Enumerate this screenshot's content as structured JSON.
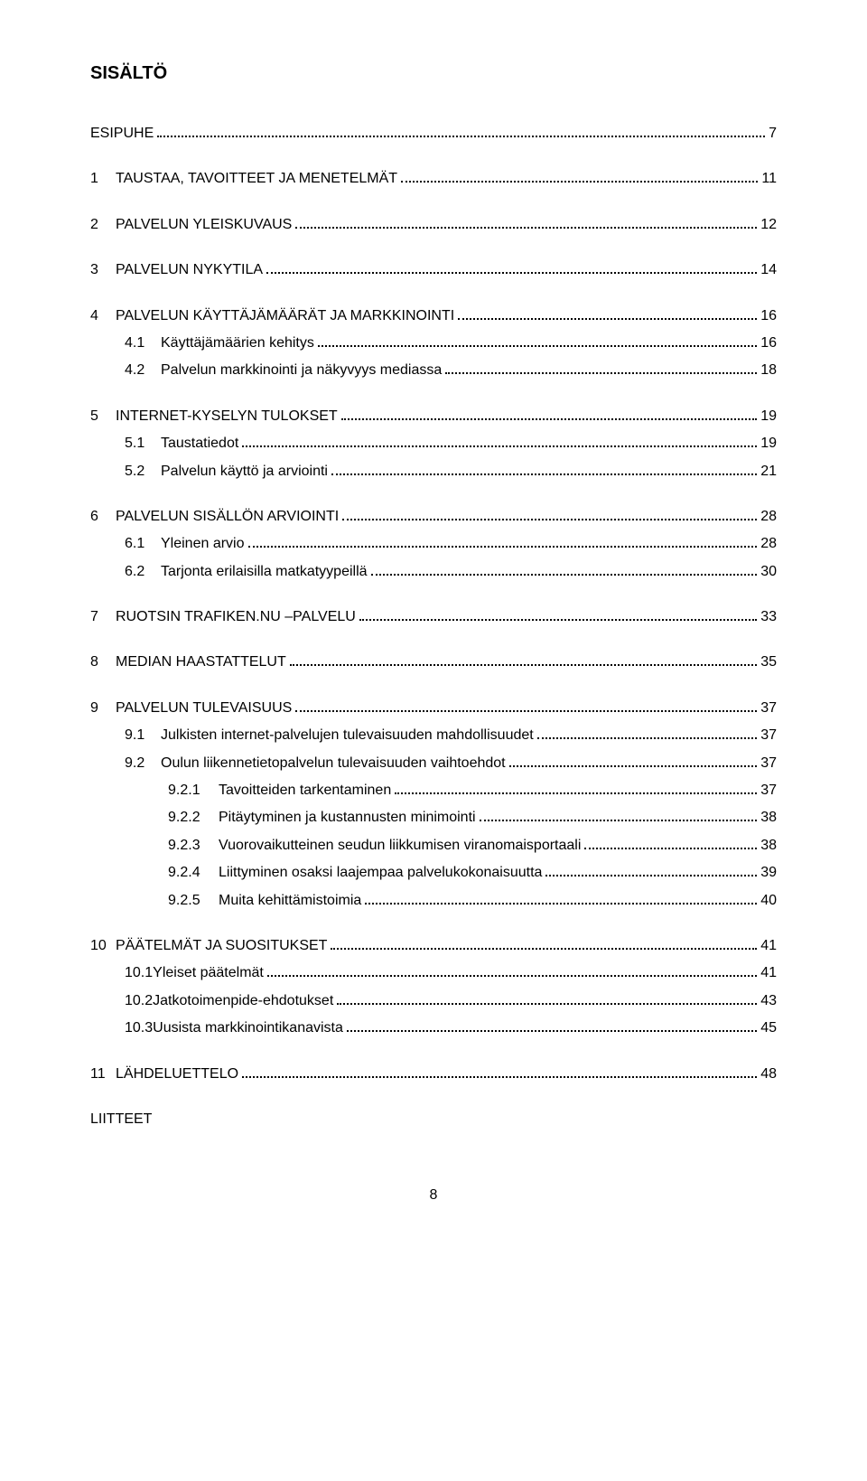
{
  "title": "SISÄLTÖ",
  "footer_page": "8",
  "toc": [
    {
      "type": "chapter-plain",
      "label": "ESIPUHE",
      "page": "7",
      "gap": false
    },
    {
      "type": "chapter",
      "num": "1",
      "label": "TAUSTAA, TAVOITTEET JA MENETELMÄT",
      "page": "11",
      "gap": true
    },
    {
      "type": "chapter",
      "num": "2",
      "label": "PALVELUN YLEISKUVAUS",
      "page": "12",
      "gap": true
    },
    {
      "type": "chapter",
      "num": "3",
      "label": "PALVELUN NYKYTILA",
      "page": "14",
      "gap": true
    },
    {
      "type": "chapter",
      "num": "4",
      "label": "PALVELUN KÄYTTÄJÄMÄÄRÄT JA MARKKINOINTI",
      "page": "16",
      "gap": true
    },
    {
      "type": "sub1",
      "num": "4.1",
      "label": "Käyttäjämäärien kehitys",
      "page": "16"
    },
    {
      "type": "sub1",
      "num": "4.2",
      "label": "Palvelun markkinointi ja näkyvyys mediassa",
      "page": "18"
    },
    {
      "type": "chapter",
      "num": "5",
      "label": "INTERNET-KYSELYN TULOKSET",
      "page": "19",
      "gap": true
    },
    {
      "type": "sub1",
      "num": "5.1",
      "label": "Taustatiedot",
      "page": "19"
    },
    {
      "type": "sub1",
      "num": "5.2",
      "label": "Palvelun käyttö ja arviointi",
      "page": "21"
    },
    {
      "type": "chapter",
      "num": "6",
      "label": "PALVELUN SISÄLLÖN ARVIOINTI",
      "page": "28",
      "gap": true
    },
    {
      "type": "sub1",
      "num": "6.1",
      "label": "Yleinen arvio",
      "page": "28"
    },
    {
      "type": "sub1",
      "num": "6.2",
      "label": "Tarjonta erilaisilla matkatyypeillä",
      "page": "30"
    },
    {
      "type": "chapter",
      "num": "7",
      "label": "RUOTSIN TRAFIKEN.NU –PALVELU",
      "page": "33",
      "gap": true
    },
    {
      "type": "chapter",
      "num": "8",
      "label": "MEDIAN HAASTATTELUT",
      "page": "35",
      "gap": true
    },
    {
      "type": "chapter",
      "num": "9",
      "label": "PALVELUN TULEVAISUUS",
      "page": "37",
      "gap": true
    },
    {
      "type": "sub1",
      "num": "9.1",
      "label": "Julkisten internet-palvelujen tulevaisuuden mahdollisuudet",
      "page": "37"
    },
    {
      "type": "sub1",
      "num": "9.2",
      "label": "Oulun liikennetietopalvelun tulevaisuuden vaihtoehdot",
      "page": "37"
    },
    {
      "type": "sub2",
      "num": "9.2.1",
      "label": "Tavoitteiden tarkentaminen",
      "page": "37"
    },
    {
      "type": "sub2",
      "num": "9.2.2",
      "label": "Pitäytyminen ja kustannusten minimointi",
      "page": "38"
    },
    {
      "type": "sub2",
      "num": "9.2.3",
      "label": "Vuorovaikutteinen seudun liikkumisen viranomaisportaali",
      "page": "38"
    },
    {
      "type": "sub2",
      "num": "9.2.4",
      "label": "Liittyminen osaksi laajempaa palvelukokonaisuutta",
      "page": "39"
    },
    {
      "type": "sub2",
      "num": "9.2.5",
      "label": "Muita kehittämistoimia",
      "page": "40"
    },
    {
      "type": "chapter",
      "num": "10",
      "label": "PÄÄTELMÄT JA SUOSITUKSET",
      "page": "41",
      "gap": true
    },
    {
      "type": "sub1-tight",
      "num": "10.1",
      "label": "Yleiset päätelmät",
      "page": "41"
    },
    {
      "type": "sub1-tight",
      "num": "10.2",
      "label": "Jatkotoimenpide-ehdotukset",
      "page": "43"
    },
    {
      "type": "sub1-tight",
      "num": "10.3",
      "label": "Uusista markkinointikanavista",
      "page": "45"
    },
    {
      "type": "chapter",
      "num": "11",
      "label": "LÄHDELUETTELO",
      "page": "48",
      "gap": true
    },
    {
      "type": "plain",
      "label": "LIITTEET",
      "gap": true
    }
  ]
}
